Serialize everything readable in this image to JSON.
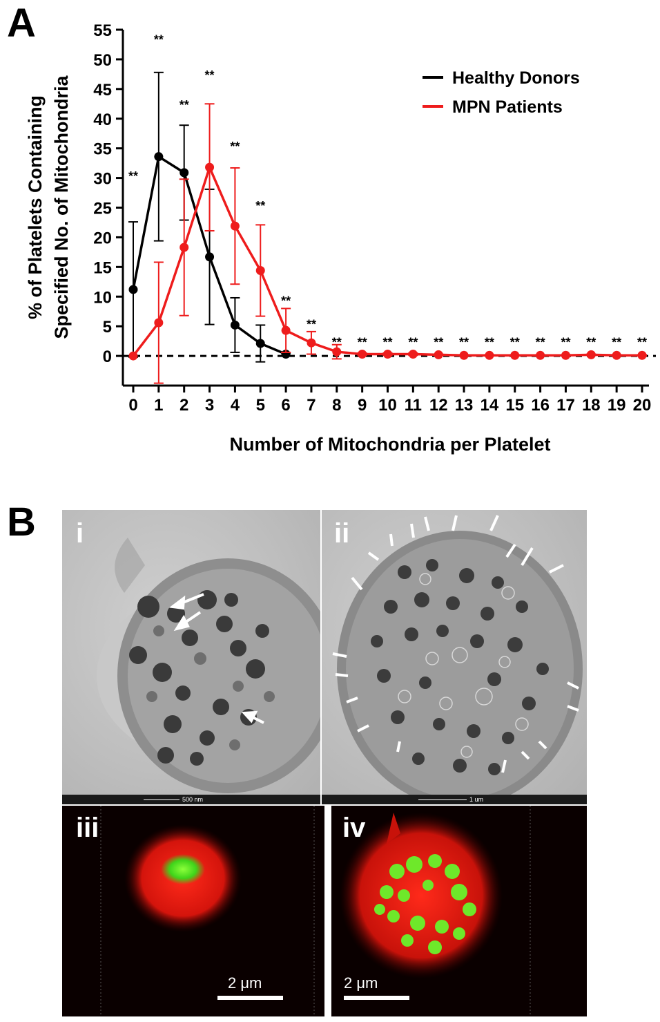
{
  "panelA": {
    "letter": "A"
  },
  "panelB": {
    "letter": "B"
  },
  "chart_data": {
    "type": "line",
    "xlabel": "Number of Mitochondria per Platelet",
    "ylabel_line1": "% of Platelets Containing",
    "ylabel_line2": "Specified No. of Mitochondria",
    "x": [
      0,
      1,
      2,
      3,
      4,
      5,
      6,
      7,
      8,
      9,
      10,
      11,
      12,
      13,
      14,
      15,
      16,
      17,
      18,
      19,
      20
    ],
    "xlim": [
      0,
      20
    ],
    "ylim": [
      -5,
      55
    ],
    "yticks": [
      0,
      5,
      10,
      15,
      20,
      25,
      30,
      35,
      40,
      45,
      50,
      55
    ],
    "legend_position": "top-right",
    "series": [
      {
        "name": "Healthy Donors",
        "color": "#000000",
        "x": [
          0,
          1,
          2,
          3,
          4,
          5,
          6
        ],
        "values": [
          11.2,
          33.6,
          30.9,
          16.7,
          5.2,
          2.1,
          0.3
        ],
        "errors": [
          11.4,
          14.2,
          8.0,
          11.4,
          4.6,
          3.1,
          0.2
        ]
      },
      {
        "name": "MPN Patients",
        "color": "#ee1c1c",
        "x": [
          0,
          1,
          2,
          3,
          4,
          5,
          6,
          7,
          8,
          9,
          10,
          11,
          12,
          13,
          14,
          15,
          16,
          17,
          18,
          19,
          20
        ],
        "values": [
          0.0,
          5.6,
          18.3,
          31.8,
          21.9,
          14.4,
          4.3,
          2.2,
          0.7,
          0.3,
          0.3,
          0.3,
          0.2,
          0.1,
          0.1,
          0.1,
          0.1,
          0.1,
          0.2,
          0.1,
          0.1
        ],
        "errors": [
          0.0,
          10.2,
          11.5,
          10.7,
          9.8,
          7.7,
          3.7,
          1.9,
          1.2,
          0.2,
          0.2,
          0.2,
          0.1,
          0.1,
          0.1,
          0.1,
          0.1,
          0.1,
          0.1,
          0.1,
          0.1
        ]
      }
    ],
    "annotations": {
      "marker": "**",
      "x": [
        0,
        1,
        2,
        3,
        4,
        5,
        6,
        7,
        8,
        9,
        10,
        11,
        12,
        13,
        14,
        15,
        16,
        17,
        18,
        19,
        20
      ],
      "y": [
        31,
        54,
        43,
        48,
        36,
        26,
        10,
        6,
        3,
        3,
        3,
        3,
        3,
        3,
        3,
        3,
        3,
        3,
        3,
        3,
        3
      ]
    },
    "reference_line": {
      "y": 0,
      "style": "dashed"
    }
  },
  "micrographs": [
    {
      "id": "i",
      "label": "i",
      "scale": "500 nm"
    },
    {
      "id": "ii",
      "label": "ii",
      "scale": "1 um"
    },
    {
      "id": "iii",
      "label": "iii",
      "scale": "2 μm"
    },
    {
      "id": "iv",
      "label": "iv",
      "scale": "2 μm"
    }
  ]
}
